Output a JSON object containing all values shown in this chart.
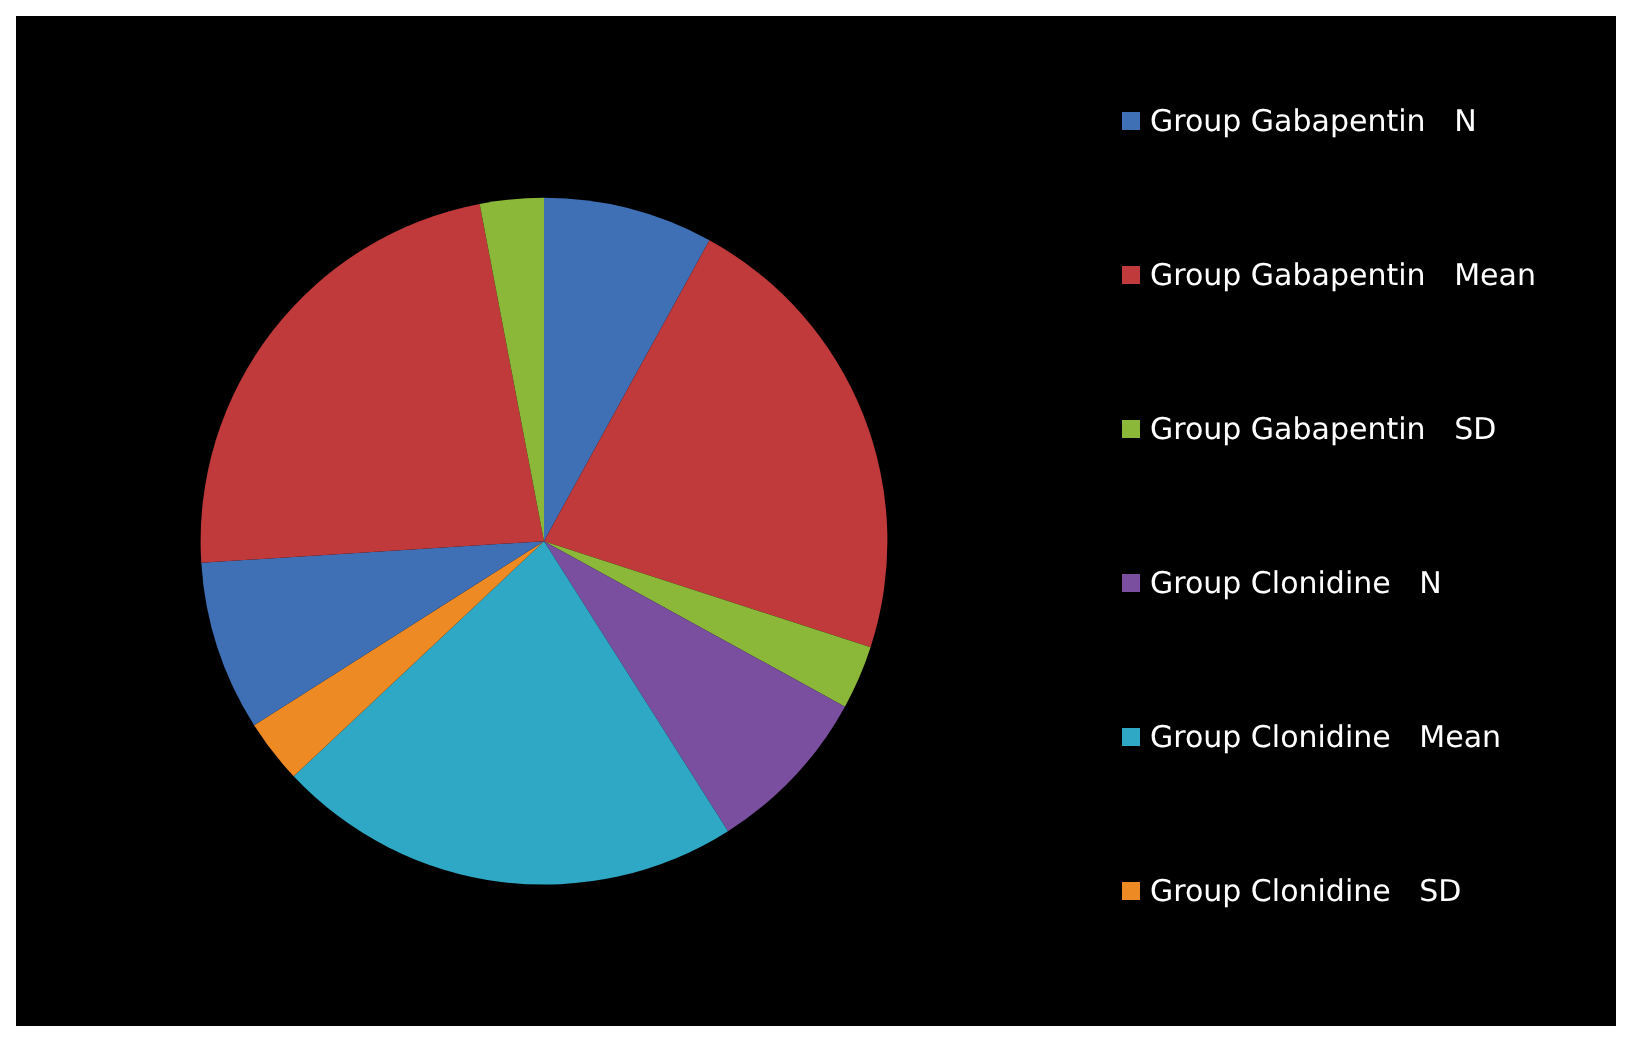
{
  "chart_data": {
    "type": "pie",
    "categories": [
      "Group Gabapentin   N",
      "Group Gabapentin   Mean",
      "Group Gabapentin   SD",
      "Group Clonidine   N",
      "Group Clonidine   Mean",
      "Group Clonidine   SD",
      null,
      null,
      null
    ],
    "values": [
      8,
      22,
      3,
      8,
      22,
      3,
      8,
      23,
      3
    ],
    "colors": [
      "#3f6fb5",
      "#c0393b",
      "#8cb83a",
      "#7a4fa0",
      "#2fa8c6",
      "#ee8a24",
      "#3f6fb5",
      "#c0393b",
      "#8cb83a"
    ],
    "legend": "right"
  }
}
